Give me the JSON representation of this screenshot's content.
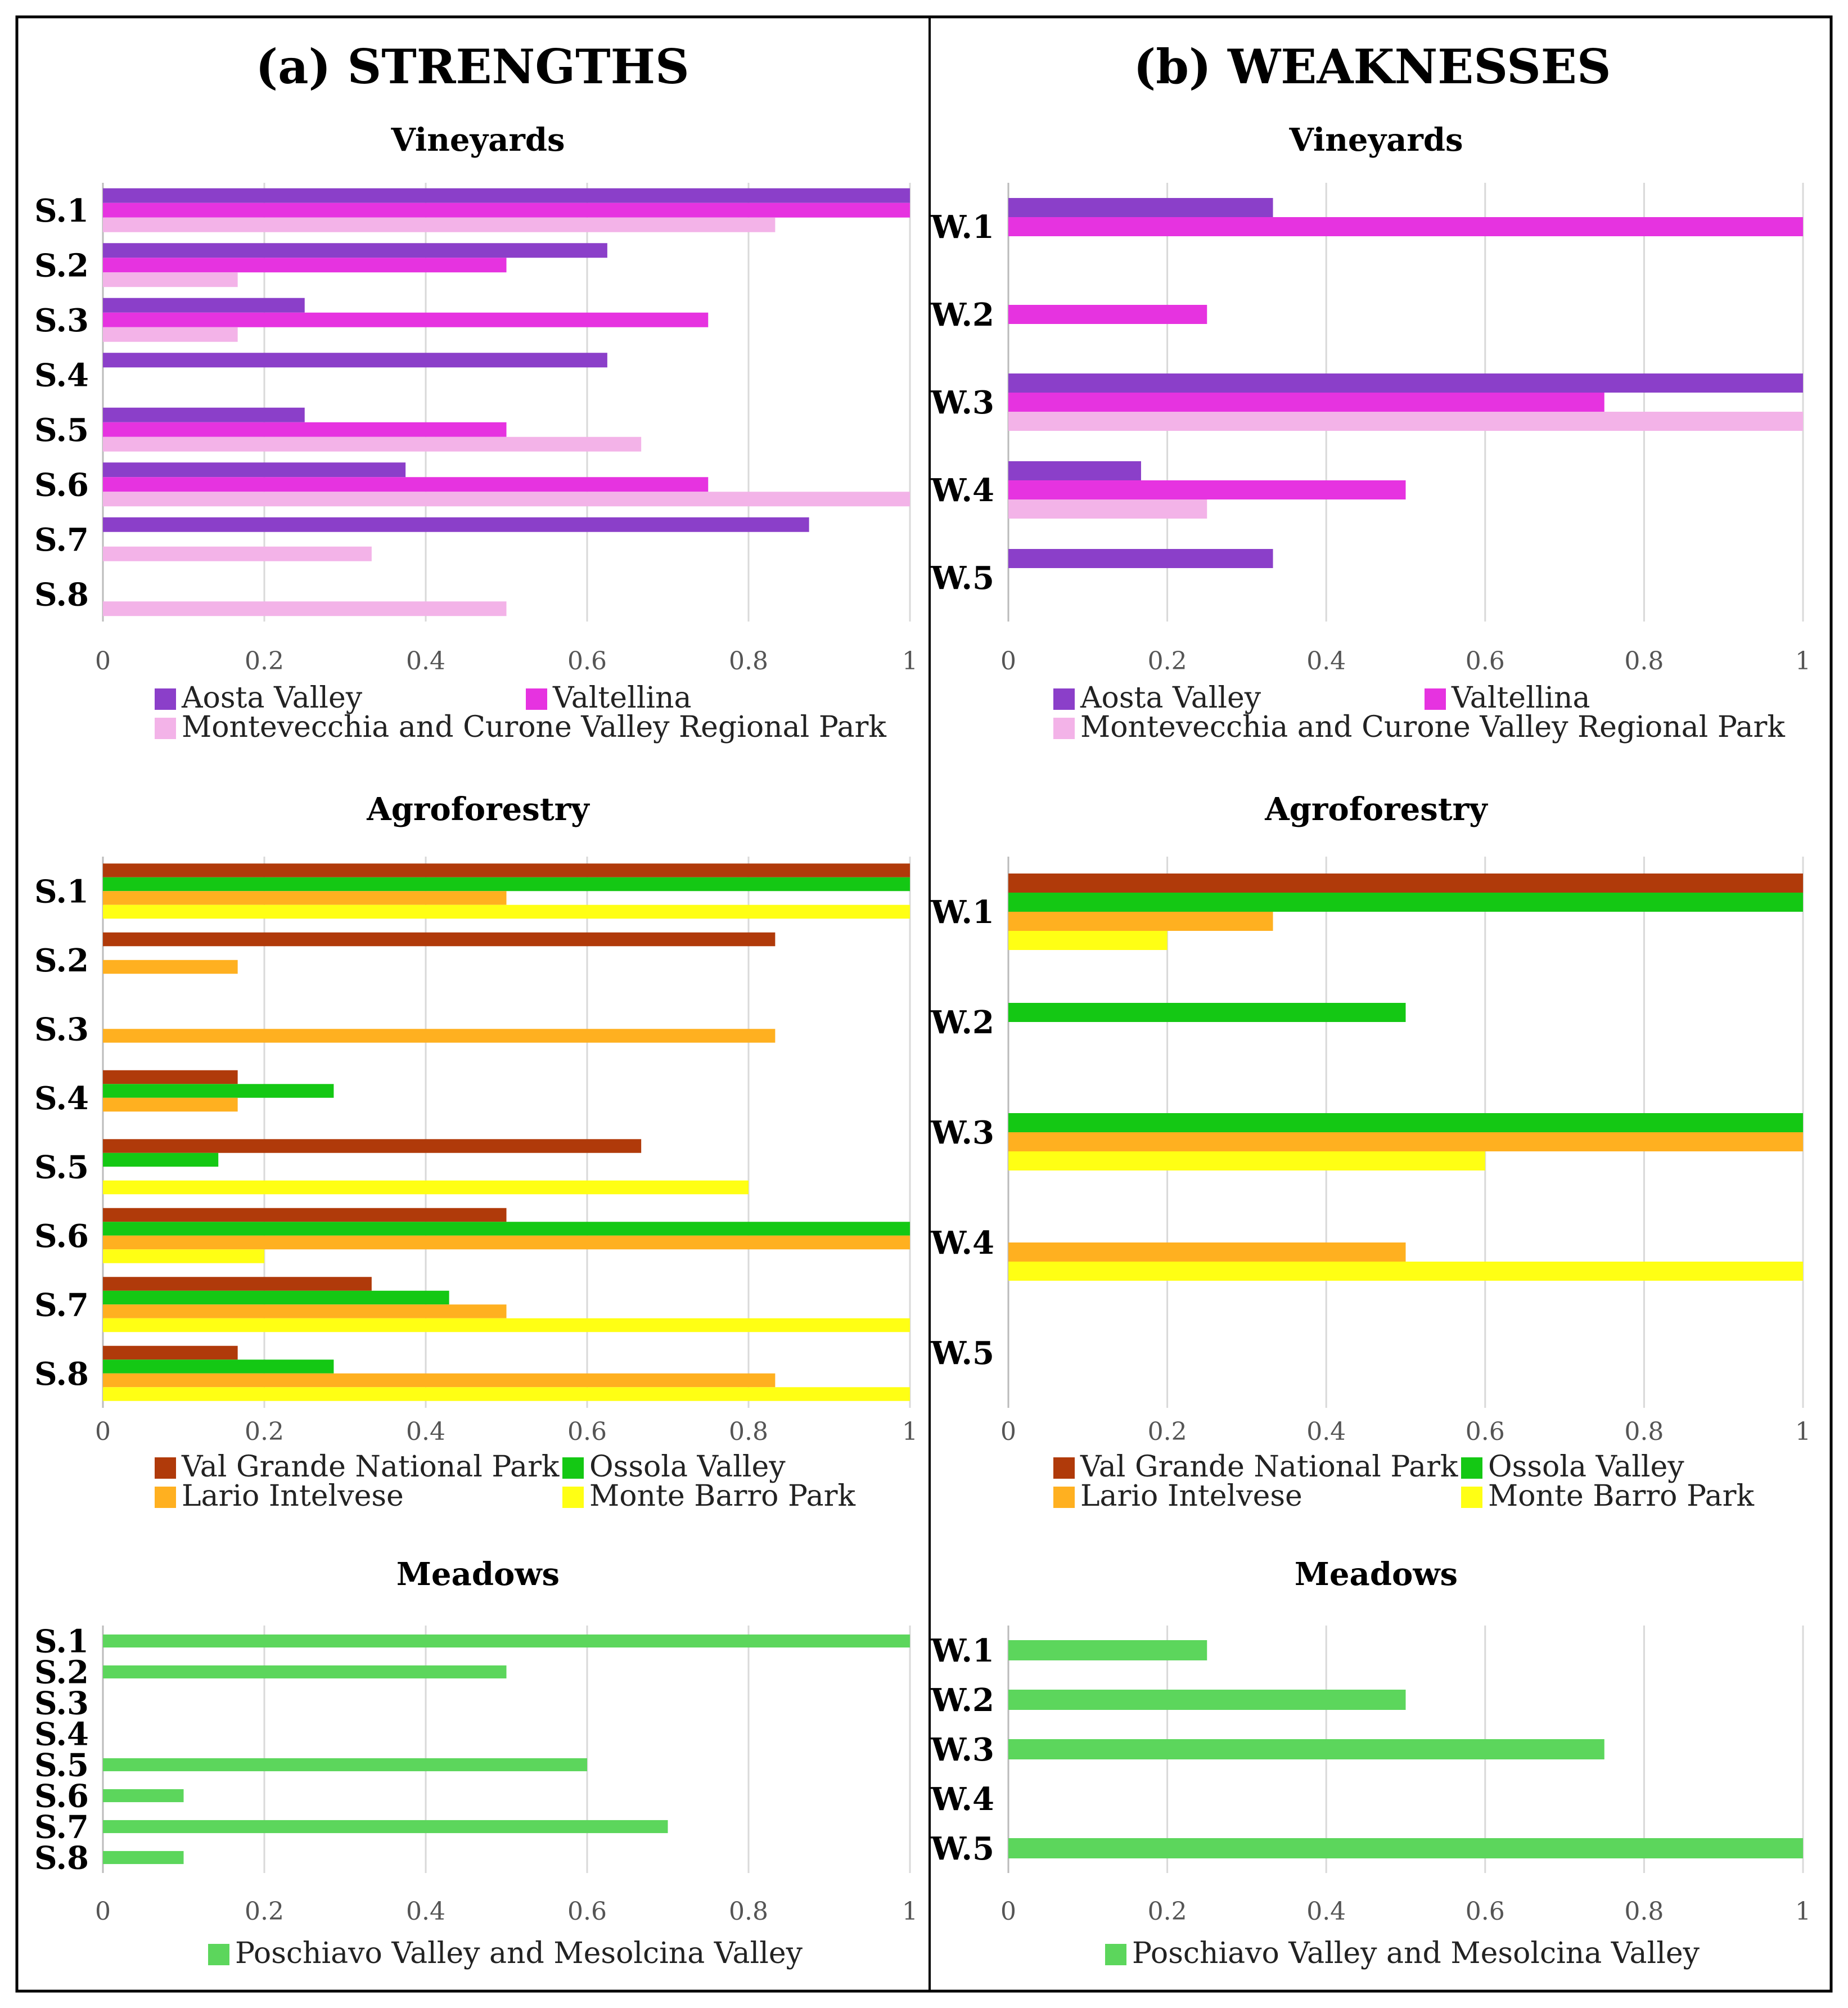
{
  "panels": [
    {
      "title": "(a) STRENGTHS"
    },
    {
      "title": "(b) WEAKNESSES"
    }
  ],
  "chart_data": [
    {
      "type": "bar",
      "orientation": "horizontal",
      "panel": "strengths",
      "title": "Vineyards",
      "categories": [
        "S.1",
        "S.2",
        "S.3",
        "S.4",
        "S.5",
        "S.6",
        "S.7",
        "S.8"
      ],
      "series": [
        {
          "name": "Aosta Valley",
          "color": "#8b3fc9",
          "values": [
            1,
            0.625,
            0.25,
            0.625,
            0.25,
            0.375,
            0.875,
            0
          ]
        },
        {
          "name": "Valtellina",
          "color": "#e633e0",
          "values": [
            1,
            0.5,
            0.75,
            0,
            0.5,
            0.75,
            0,
            0
          ]
        },
        {
          "name": "Montevecchia and Curone Valley Regional Park",
          "color": "#f3b3e8",
          "values": [
            0.833,
            0.167,
            0.167,
            0,
            0.667,
            1,
            0.333,
            0.5
          ]
        }
      ],
      "xlim": [
        0,
        1
      ],
      "xticks": [
        "0",
        "0.2",
        "0.4",
        "0.6",
        "0.8",
        "1"
      ],
      "grid": true,
      "legend": "bottom"
    },
    {
      "type": "bar",
      "orientation": "horizontal",
      "panel": "weaknesses",
      "title": "Vineyards",
      "categories": [
        "W.1",
        "W.2",
        "W.3",
        "W.4",
        "W.5"
      ],
      "series": [
        {
          "name": "Aosta Valley",
          "color": "#8b3fc9",
          "values": [
            0.333,
            0,
            1,
            0.167,
            0.333
          ]
        },
        {
          "name": "Valtellina",
          "color": "#e633e0",
          "values": [
            1,
            0.25,
            0.75,
            0.5,
            0
          ]
        },
        {
          "name": "Montevecchia and Curone Valley Regional Park",
          "color": "#f3b3e8",
          "values": [
            0,
            0,
            1,
            0.25,
            0
          ]
        }
      ],
      "xlim": [
        0,
        1
      ],
      "xticks": [
        "0",
        "0.2",
        "0.4",
        "0.6",
        "0.8",
        "1"
      ],
      "grid": true,
      "legend": "bottom"
    },
    {
      "type": "bar",
      "orientation": "horizontal",
      "panel": "strengths",
      "title": "Agroforestry",
      "categories": [
        "S.1",
        "S.2",
        "S.3",
        "S.4",
        "S.5",
        "S.6",
        "S.7",
        "S.8"
      ],
      "series": [
        {
          "name": "Val Grande National Park",
          "color": "#b03a0a",
          "values": [
            1,
            0.833,
            0,
            0.167,
            0.667,
            0.5,
            0.333,
            0.167
          ]
        },
        {
          "name": "Ossola Valley",
          "color": "#14c814",
          "values": [
            1,
            0,
            0,
            0.286,
            0.143,
            1,
            0.429,
            0.286
          ]
        },
        {
          "name": "Lario Intelvese",
          "color": "#ffb020",
          "values": [
            0.5,
            0.167,
            0.833,
            0.167,
            0,
            1,
            0.5,
            0.833
          ]
        },
        {
          "name": "Monte Barro Park",
          "color": "#ffff14",
          "values": [
            1,
            0,
            0,
            0,
            0.8,
            0.2,
            1,
            1
          ]
        }
      ],
      "xlim": [
        0,
        1
      ],
      "xticks": [
        "0",
        "0.2",
        "0.4",
        "0.6",
        "0.8",
        "1"
      ],
      "grid": true,
      "legend": "bottom"
    },
    {
      "type": "bar",
      "orientation": "horizontal",
      "panel": "weaknesses",
      "title": "Agroforestry",
      "categories": [
        "W.1",
        "W.2",
        "W.3",
        "W.4",
        "W.5"
      ],
      "series": [
        {
          "name": "Val Grande National Park",
          "color": "#b03a0a",
          "values": [
            1,
            0,
            0,
            0,
            0
          ]
        },
        {
          "name": "Ossola Valley",
          "color": "#14c814",
          "values": [
            1,
            0.5,
            1,
            0,
            0
          ]
        },
        {
          "name": "Lario Intelvese",
          "color": "#ffb020",
          "values": [
            0.333,
            0,
            1,
            0.5,
            0
          ]
        },
        {
          "name": "Monte Barro Park",
          "color": "#ffff14",
          "values": [
            0.2,
            0,
            0.6,
            1,
            0
          ]
        }
      ],
      "xlim": [
        0,
        1
      ],
      "xticks": [
        "0",
        "0.2",
        "0.4",
        "0.6",
        "0.8",
        "1"
      ],
      "grid": true,
      "legend": "bottom"
    },
    {
      "type": "bar",
      "orientation": "horizontal",
      "panel": "strengths",
      "title": "Meadows",
      "categories": [
        "S.1",
        "S.2",
        "S.3",
        "S.4",
        "S.5",
        "S.6",
        "S.7",
        "S.8"
      ],
      "series": [
        {
          "name": "Poschiavo Valley and Mesolcina Valley",
          "color": "#5cd65c",
          "values": [
            1,
            0.5,
            0,
            0,
            0.6,
            0.1,
            0.7,
            0.1
          ]
        }
      ],
      "xlim": [
        0,
        1
      ],
      "xticks": [
        "0",
        "0.2",
        "0.4",
        "0.6",
        "0.8",
        "1"
      ],
      "grid": true,
      "legend": "bottom"
    },
    {
      "type": "bar",
      "orientation": "horizontal",
      "panel": "weaknesses",
      "title": "Meadows",
      "categories": [
        "W.1",
        "W.2",
        "W.3",
        "W.4",
        "W.5"
      ],
      "series": [
        {
          "name": "Poschiavo Valley and Mesolcina Valley",
          "color": "#5cd65c",
          "values": [
            0.25,
            0.5,
            0.75,
            0,
            1
          ]
        }
      ],
      "xlim": [
        0,
        1
      ],
      "xticks": [
        "0",
        "0.2",
        "0.4",
        "0.6",
        "0.8",
        "1"
      ],
      "grid": true,
      "legend": "bottom"
    }
  ]
}
